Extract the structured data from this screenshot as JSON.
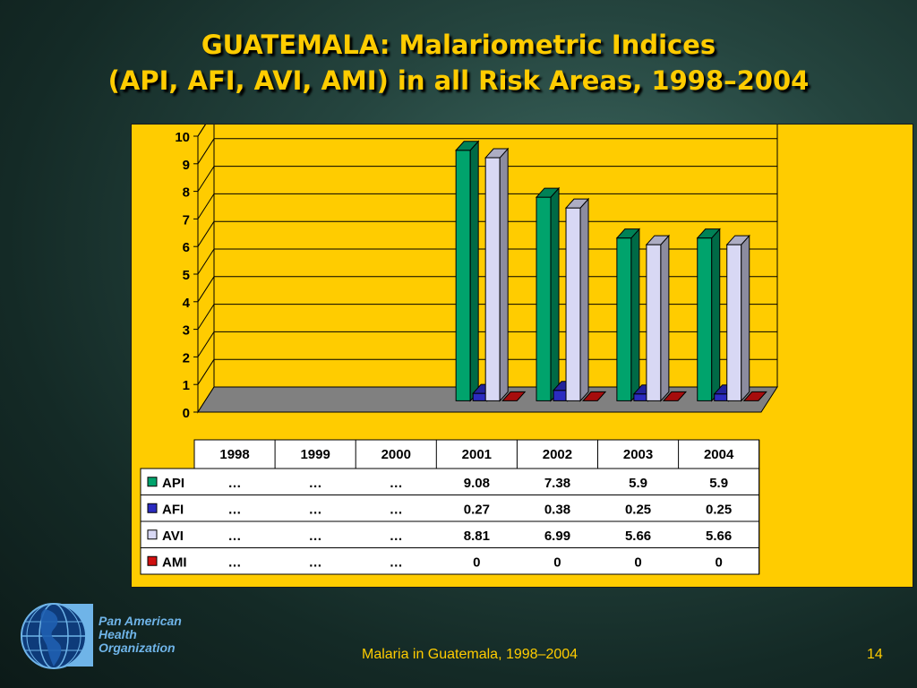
{
  "slide": {
    "title_line1": "GUATEMALA: Malariometric Indices",
    "title_line2": "(API, AFI, AVI, AMI) in all Risk Areas, 1998–2004",
    "footer": "Malaria in Guatemala, 1998–2004",
    "page_number": "14"
  },
  "logo": {
    "org_line1": "Pan American",
    "org_line2": "Health",
    "org_line3": "Organization",
    "icon": "globe-americas-icon"
  },
  "colors": {
    "panel": "#ffcc00",
    "title": "#ffcc00",
    "floor": "#808080"
  },
  "chart_data": {
    "type": "bar",
    "categories": [
      "1998",
      "1999",
      "2000",
      "2001",
      "2002",
      "2003",
      "2004"
    ],
    "ylim": [
      0,
      10
    ],
    "yticks": [
      0,
      1,
      2,
      3,
      4,
      5,
      6,
      7,
      8,
      9,
      10
    ],
    "grid": true,
    "legend_placement": "data-table",
    "series": [
      {
        "name": "API",
        "color": "#00a36c",
        "values": [
          null,
          null,
          null,
          9.08,
          7.38,
          5.9,
          5.9
        ],
        "labels": [
          "…",
          "…",
          "…",
          "9.08",
          "7.38",
          "5.9",
          "5.9"
        ]
      },
      {
        "name": "AFI",
        "color": "#2b2bc0",
        "values": [
          null,
          null,
          null,
          0.27,
          0.38,
          0.25,
          0.25
        ],
        "labels": [
          "…",
          "…",
          "…",
          "0.27",
          "0.38",
          "0.25",
          "0.25"
        ]
      },
      {
        "name": "AVI",
        "color": "#d8d8f4",
        "values": [
          null,
          null,
          null,
          8.81,
          6.99,
          5.66,
          5.66
        ],
        "labels": [
          "…",
          "…",
          "…",
          "8.81",
          "6.99",
          "5.66",
          "5.66"
        ]
      },
      {
        "name": "AMI",
        "color": "#d01010",
        "values": [
          null,
          null,
          null,
          0,
          0,
          0,
          0
        ],
        "labels": [
          "…",
          "…",
          "…",
          "0",
          "0",
          "0",
          "0"
        ]
      }
    ]
  }
}
